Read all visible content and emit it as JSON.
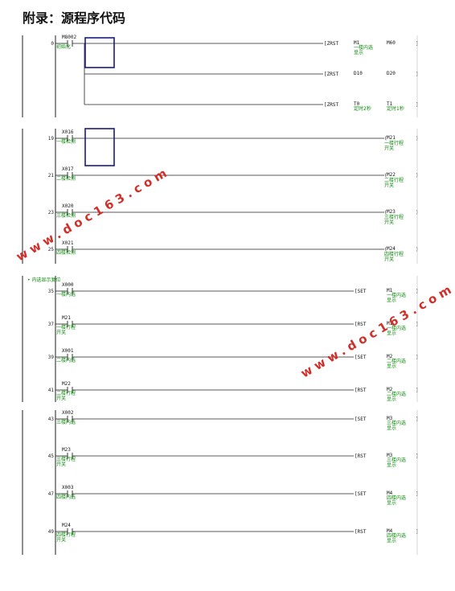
{
  "page": {
    "title": "附录：源程序代码"
  },
  "watermarks": [
    "www.doc163.com",
    "www.doc163.com"
  ],
  "section_label": "内选显示复位",
  "blocks": [
    {
      "rungs": [
        {
          "step": "0",
          "contact": "M8002",
          "comment": "初始化",
          "instr": "ZRST",
          "op1": "M1",
          "op1_comment": "一楼内选显示",
          "op2": "M60",
          "op2_comment": "",
          "branches": [
            {
              "instr": "ZRST",
              "op1": "D10",
              "op1_comment": "",
              "op2": "D20",
              "op2_comment": ""
            },
            {
              "instr": "ZRST",
              "op1": "T0",
              "op1_comment": "定时2秒",
              "op2": "T1",
              "op2_comment": "定时1秒"
            }
          ]
        }
      ]
    },
    {
      "rungs": [
        {
          "step": "19",
          "contact": "X016",
          "comment": "一楼检测",
          "coil": "M21",
          "coil_comment": "一楼行程开关"
        },
        {
          "step": "21",
          "contact": "X017",
          "comment": "二楼检测",
          "coil": "M22",
          "coil_comment": "二楼行程开关"
        },
        {
          "step": "23",
          "contact": "X020",
          "comment": "三楼检测",
          "coil": "M23",
          "coil_comment": "三楼行程开关"
        },
        {
          "step": "25",
          "contact": "X021",
          "comment": "四楼检测",
          "coil": "M24",
          "coil_comment": "四楼行程开关"
        }
      ]
    },
    {
      "rungs": [
        {
          "step": "35",
          "contact": "X000",
          "comment": "一楼内选",
          "instr": "SET",
          "op1": "M1",
          "op1_comment": "一楼内选显示"
        },
        {
          "step": "37",
          "contact": "M21",
          "comment": "一楼行程开关",
          "instr": "RST",
          "op1": "M1",
          "op1_comment": "一楼内选显示"
        },
        {
          "step": "39",
          "contact": "X001",
          "comment": "二楼内选",
          "instr": "SET",
          "op1": "M2",
          "op1_comment": "二楼内选显示"
        },
        {
          "step": "41",
          "contact": "M22",
          "comment": "二楼行程开关",
          "instr": "RST",
          "op1": "M2",
          "op1_comment": "二楼内选显示"
        }
      ]
    },
    {
      "rungs": [
        {
          "step": "43",
          "contact": "X002",
          "comment": "三楼内选",
          "instr": "SET",
          "op1": "M3",
          "op1_comment": "三楼内选显示"
        },
        {
          "step": "45",
          "contact": "M23",
          "comment": "三楼行程开关",
          "instr": "RST",
          "op1": "M3",
          "op1_comment": "三楼内选显示"
        },
        {
          "step": "47",
          "contact": "X003",
          "comment": "四楼内选",
          "instr": "SET",
          "op1": "M4",
          "op1_comment": "四楼内选显示"
        },
        {
          "step": "49",
          "contact": "M24",
          "comment": "四楼行程开关",
          "instr": "RST",
          "op1": "M4",
          "op1_comment": "四楼内选显示"
        }
      ]
    }
  ]
}
